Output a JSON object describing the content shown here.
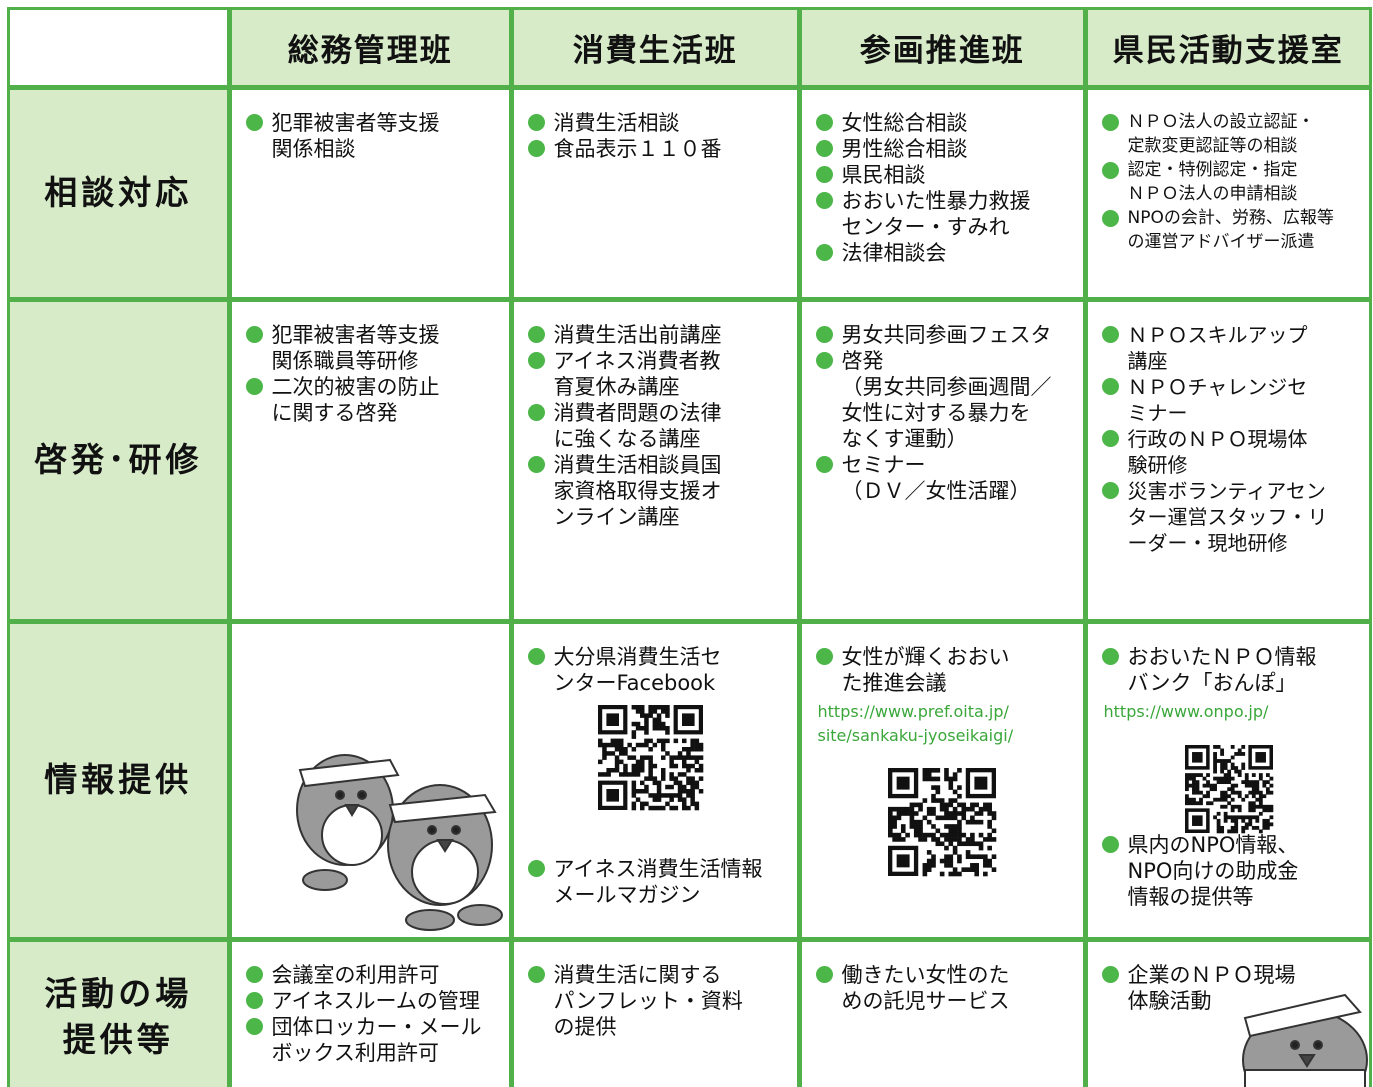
{
  "table": {
    "columns": [
      "総務管理班",
      "消費生活班",
      "参画推進班",
      "県民活動支援室"
    ],
    "rows": [
      {
        "label": [
          "相談対応"
        ],
        "cells": [
          [
            {
              "item": [
                "犯罪被害者等支援",
                "関係相談"
              ]
            }
          ],
          [
            {
              "item": [
                "消費生活相談"
              ]
            },
            {
              "item": [
                "食品表示１１０番"
              ]
            }
          ],
          [
            {
              "item": [
                "女性総合相談"
              ]
            },
            {
              "item": [
                "男性総合相談"
              ]
            },
            {
              "item": [
                "県民相談"
              ]
            },
            {
              "item": [
                "おおいた性暴力救援",
                "センター・すみれ"
              ]
            },
            {
              "item": [
                "法律相談会"
              ]
            }
          ],
          [
            {
              "item": [
                "ＮＰＯ法人の設立認証・",
                "定款変更認証等の相談"
              ]
            },
            {
              "item": [
                "認定・特例認定・指定",
                "ＮＰＯ法人の申請相談"
              ]
            },
            {
              "item": [
                "NPOの会計、労務、広報等",
                "の運営アドバイザー派遣"
              ]
            }
          ]
        ]
      },
      {
        "label": [
          "啓発･研修"
        ],
        "cells": [
          [
            {
              "item": [
                "犯罪被害者等支援",
                "関係職員等研修"
              ]
            },
            {
              "item": [
                "二次的被害の防止",
                "に関する啓発"
              ]
            }
          ],
          [
            {
              "item": [
                "消費生活出前講座"
              ]
            },
            {
              "item": [
                "アイネス消費者教",
                "育夏休み講座"
              ]
            },
            {
              "item": [
                "消費者問題の法律",
                "に強くなる講座"
              ]
            },
            {
              "item": [
                "消費生活相談員国",
                "家資格取得支援オ",
                "ンライン講座"
              ]
            }
          ],
          [
            {
              "item": [
                "男女共同参画フェスタ"
              ]
            },
            {
              "item": [
                "啓発",
                "（男女共同参画週間／",
                "女性に対する暴力を",
                "なくす運動）"
              ]
            },
            {
              "item": [
                "セミナー",
                "（ＤＶ／女性活躍）"
              ]
            }
          ],
          [
            {
              "item": [
                "ＮＰＯスキルアップ",
                "講座"
              ]
            },
            {
              "item": [
                "ＮＰＯチャレンジセ",
                "ミナー"
              ]
            },
            {
              "item": [
                "行政のＮＰＯ現場体",
                "験研修"
              ]
            },
            {
              "item": [
                "災害ボランティアセン",
                "ター運営スタッフ・リ",
                "ーダー・現地研修"
              ]
            }
          ]
        ]
      },
      {
        "label": [
          "情報提供"
        ],
        "cells": [
          [],
          [
            {
              "item": [
                "大分県消費生活セ",
                "ンターFacebook"
              ]
            },
            {
              "item": [
                "アイネス消費生活情報",
                "メールマガジン"
              ]
            }
          ],
          [
            {
              "item": [
                "女性が輝くおおい",
                "た推進会議"
              ]
            },
            {
              "link": [
                "https://www.pref.oita.jp/",
                "site/sankaku-jyoseikaigi/"
              ]
            }
          ],
          [
            {
              "item": [
                "おおいたＮＰＯ情報",
                "バンク「おんぽ」"
              ]
            },
            {
              "link": [
                "https://www.onpo.jp/"
              ]
            },
            {
              "item": [
                "県内のNPO情報、",
                "NPO向けの助成金",
                "情報の提供等"
              ]
            }
          ]
        ]
      },
      {
        "label": [
          "活動の場",
          "提供等"
        ],
        "cells": [
          [
            {
              "item": [
                "会議室の利用許可"
              ]
            },
            {
              "item": [
                "アイネスルームの管理"
              ]
            },
            {
              "item": [
                "団体ロッカー・メール",
                "ボックス利用許可"
              ]
            }
          ],
          [
            {
              "item": [
                "消費生活に関する",
                "パンフレット・資料",
                "の提供"
              ]
            }
          ],
          [
            {
              "item": [
                "働きたい女性のた",
                "めの託児サービス"
              ]
            }
          ],
          [
            {
              "item": [
                "企業のＮＰＯ現場",
                "体験活動"
              ]
            }
          ]
        ]
      }
    ]
  }
}
